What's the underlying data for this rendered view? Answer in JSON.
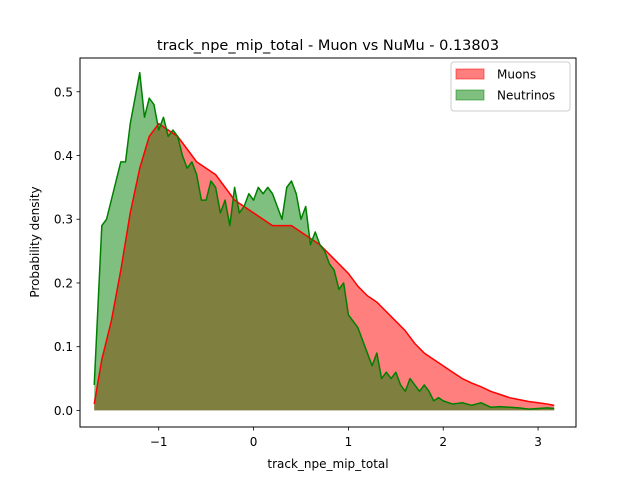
{
  "chart_data": {
    "type": "area",
    "title": "track_npe_mip_total - Muon vs NuMu - 0.13803",
    "xlabel": "track_npe_mip_total",
    "ylabel": "Probability density",
    "xlim": [
      -1.83,
      3.4
    ],
    "ylim": [
      -0.026,
      0.553
    ],
    "xticks": [
      {
        "value": -1,
        "label": "−1"
      },
      {
        "value": 0,
        "label": "0"
      },
      {
        "value": 1,
        "label": "1"
      },
      {
        "value": 2,
        "label": "2"
      },
      {
        "value": 3,
        "label": "3"
      }
    ],
    "yticks": [
      {
        "value": 0.0,
        "label": "0.0"
      },
      {
        "value": 0.1,
        "label": "0.1"
      },
      {
        "value": 0.2,
        "label": "0.2"
      },
      {
        "value": 0.3,
        "label": "0.3"
      },
      {
        "value": 0.4,
        "label": "0.4"
      },
      {
        "value": 0.5,
        "label": "0.5"
      }
    ],
    "grid": false,
    "legend_position": "top-right",
    "series": [
      {
        "name": "Muons",
        "fill_color": "#ff0000",
        "fill_opacity": 0.5,
        "line_color": "#ff0000",
        "points": [
          [
            -1.68,
            0.01
          ],
          [
            -1.6,
            0.08
          ],
          [
            -1.5,
            0.14
          ],
          [
            -1.4,
            0.22
          ],
          [
            -1.3,
            0.31
          ],
          [
            -1.2,
            0.38
          ],
          [
            -1.1,
            0.43
          ],
          [
            -1.0,
            0.45
          ],
          [
            -0.9,
            0.44
          ],
          [
            -0.8,
            0.43
          ],
          [
            -0.7,
            0.41
          ],
          [
            -0.6,
            0.39
          ],
          [
            -0.5,
            0.38
          ],
          [
            -0.4,
            0.37
          ],
          [
            -0.3,
            0.35
          ],
          [
            -0.2,
            0.33
          ],
          [
            -0.1,
            0.32
          ],
          [
            0.0,
            0.31
          ],
          [
            0.1,
            0.3
          ],
          [
            0.2,
            0.29
          ],
          [
            0.3,
            0.29
          ],
          [
            0.4,
            0.29
          ],
          [
            0.5,
            0.28
          ],
          [
            0.6,
            0.27
          ],
          [
            0.7,
            0.26
          ],
          [
            0.8,
            0.245
          ],
          [
            0.9,
            0.23
          ],
          [
            1.0,
            0.215
          ],
          [
            1.1,
            0.195
          ],
          [
            1.2,
            0.18
          ],
          [
            1.3,
            0.17
          ],
          [
            1.4,
            0.155
          ],
          [
            1.5,
            0.14
          ],
          [
            1.6,
            0.125
          ],
          [
            1.7,
            0.105
          ],
          [
            1.8,
            0.09
          ],
          [
            1.9,
            0.08
          ],
          [
            2.0,
            0.07
          ],
          [
            2.1,
            0.06
          ],
          [
            2.2,
            0.05
          ],
          [
            2.3,
            0.043
          ],
          [
            2.4,
            0.037
          ],
          [
            2.5,
            0.03
          ],
          [
            2.6,
            0.025
          ],
          [
            2.7,
            0.02
          ],
          [
            2.8,
            0.017
          ],
          [
            2.9,
            0.014
          ],
          [
            3.0,
            0.012
          ],
          [
            3.1,
            0.01
          ],
          [
            3.17,
            0.008
          ]
        ]
      },
      {
        "name": "Neutrinos",
        "fill_color": "#008000",
        "fill_opacity": 0.5,
        "line_color": "#008000",
        "points": [
          [
            -1.68,
            0.04
          ],
          [
            -1.6,
            0.29
          ],
          [
            -1.55,
            0.3
          ],
          [
            -1.5,
            0.33
          ],
          [
            -1.45,
            0.36
          ],
          [
            -1.4,
            0.39
          ],
          [
            -1.35,
            0.39
          ],
          [
            -1.3,
            0.45
          ],
          [
            -1.25,
            0.49
          ],
          [
            -1.2,
            0.53
          ],
          [
            -1.15,
            0.46
          ],
          [
            -1.1,
            0.49
          ],
          [
            -1.05,
            0.48
          ],
          [
            -1.0,
            0.44
          ],
          [
            -0.95,
            0.46
          ],
          [
            -0.9,
            0.43
          ],
          [
            -0.85,
            0.44
          ],
          [
            -0.8,
            0.43
          ],
          [
            -0.75,
            0.4
          ],
          [
            -0.7,
            0.38
          ],
          [
            -0.65,
            0.39
          ],
          [
            -0.6,
            0.37
          ],
          [
            -0.55,
            0.33
          ],
          [
            -0.5,
            0.33
          ],
          [
            -0.45,
            0.36
          ],
          [
            -0.4,
            0.35
          ],
          [
            -0.35,
            0.31
          ],
          [
            -0.3,
            0.33
          ],
          [
            -0.25,
            0.29
          ],
          [
            -0.2,
            0.35
          ],
          [
            -0.15,
            0.31
          ],
          [
            -0.1,
            0.32
          ],
          [
            -0.05,
            0.34
          ],
          [
            0.0,
            0.33
          ],
          [
            0.05,
            0.35
          ],
          [
            0.1,
            0.34
          ],
          [
            0.15,
            0.35
          ],
          [
            0.2,
            0.34
          ],
          [
            0.25,
            0.32
          ],
          [
            0.3,
            0.3
          ],
          [
            0.35,
            0.35
          ],
          [
            0.4,
            0.36
          ],
          [
            0.45,
            0.34
          ],
          [
            0.5,
            0.3
          ],
          [
            0.55,
            0.32
          ],
          [
            0.6,
            0.26
          ],
          [
            0.65,
            0.28
          ],
          [
            0.7,
            0.26
          ],
          [
            0.75,
            0.25
          ],
          [
            0.8,
            0.23
          ],
          [
            0.85,
            0.22
          ],
          [
            0.9,
            0.19
          ],
          [
            0.95,
            0.2
          ],
          [
            1.0,
            0.15
          ],
          [
            1.05,
            0.14
          ],
          [
            1.1,
            0.13
          ],
          [
            1.15,
            0.11
          ],
          [
            1.2,
            0.09
          ],
          [
            1.25,
            0.07
          ],
          [
            1.3,
            0.09
          ],
          [
            1.35,
            0.05
          ],
          [
            1.4,
            0.06
          ],
          [
            1.45,
            0.05
          ],
          [
            1.5,
            0.06
          ],
          [
            1.55,
            0.04
          ],
          [
            1.6,
            0.03
          ],
          [
            1.65,
            0.05
          ],
          [
            1.7,
            0.04
          ],
          [
            1.75,
            0.03
          ],
          [
            1.8,
            0.04
          ],
          [
            1.85,
            0.03
          ],
          [
            1.9,
            0.015
          ],
          [
            1.95,
            0.02
          ],
          [
            2.0,
            0.015
          ],
          [
            2.1,
            0.01
          ],
          [
            2.2,
            0.012
          ],
          [
            2.3,
            0.008
          ],
          [
            2.4,
            0.012
          ],
          [
            2.5,
            0.005
          ],
          [
            2.6,
            0.006
          ],
          [
            2.7,
            0.005
          ],
          [
            2.8,
            0.004
          ],
          [
            2.9,
            0.002
          ],
          [
            3.0,
            0.003
          ],
          [
            3.1,
            0.004
          ],
          [
            3.17,
            0.003
          ]
        ]
      }
    ]
  }
}
